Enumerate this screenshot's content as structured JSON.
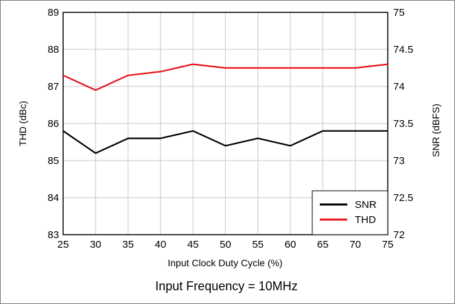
{
  "chart_data": {
    "type": "line",
    "title": "",
    "footnote": "Input Frequency = 10MHz",
    "xlabel": "Input Clock Duty Cycle  (%)",
    "ylabel_left": "THD (dBc)",
    "ylabel_right": "SNR (dBFS)",
    "x": [
      25,
      30,
      35,
      40,
      45,
      50,
      55,
      60,
      65,
      70,
      75
    ],
    "xlim": [
      25,
      75
    ],
    "ylim_left": [
      83,
      89
    ],
    "ylim_right": [
      72,
      75
    ],
    "x_ticks": [
      "25",
      "30",
      "35",
      "40",
      "45",
      "50",
      "55",
      "60",
      "65",
      "70",
      "75"
    ],
    "y_left_ticks": [
      "83",
      "84",
      "85",
      "86",
      "87",
      "88",
      "89"
    ],
    "y_right_ticks": [
      "72",
      "72.5",
      "73",
      "73.5",
      "74",
      "74.5",
      "75"
    ],
    "grid": true,
    "legend_position": "bottom-right",
    "series": [
      {
        "name": "SNR",
        "axis": "right",
        "color": "#000000",
        "values": [
          73.4,
          73.1,
          73.3,
          73.3,
          73.4,
          73.2,
          73.3,
          73.2,
          73.4,
          73.4,
          73.4
        ]
      },
      {
        "name": "THD",
        "axis": "left",
        "color": "#e8141b",
        "values": [
          87.3,
          86.9,
          87.3,
          87.4,
          87.6,
          87.5,
          87.5,
          87.5,
          87.5,
          87.5,
          87.6
        ]
      }
    ]
  }
}
